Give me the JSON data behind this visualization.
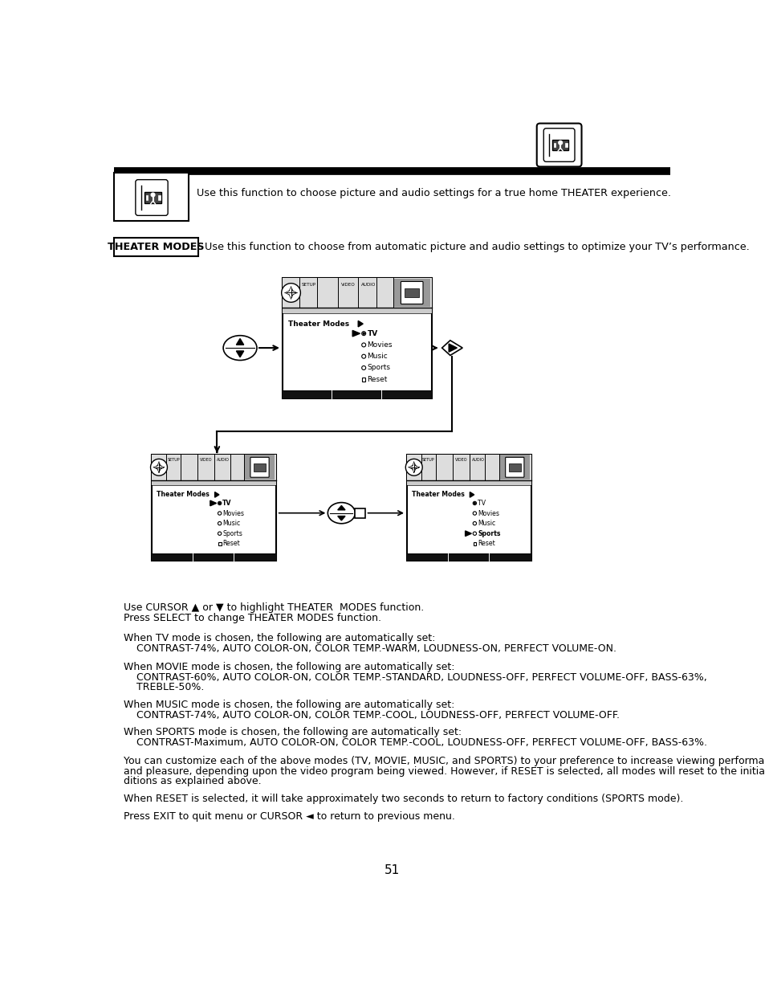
{
  "page_number": "51",
  "intro_text": "Use this function to choose picture and audio settings for a true home THEATER experience.",
  "theater_modes_label": "THEATER MODES",
  "theater_modes_desc": "Use this function to choose from automatic picture and audio settings to optimize your TV’s performance.",
  "menu_items": [
    "TV",
    "Movies",
    "Music",
    "Sports",
    "Reset"
  ],
  "cursor_text1": "Use CURSOR ▲ or ▼ to highlight THEATER  MODES function.",
  "cursor_text2": "Press SELECT to change THEATER MODES function.",
  "tv_mode_header": "When TV mode is chosen, the following are automatically set:",
  "tv_mode_detail": "    CONTRAST-74%, AUTO COLOR-ON, COLOR TEMP.-WARM, LOUDNESS-ON, PERFECT VOLUME-ON.",
  "movie_mode_header": "When MOVIE mode is chosen, the following are automatically set:",
  "movie_mode_line1": "    CONTRAST-60%, AUTO COLOR-ON, COLOR TEMP.-STANDARD, LOUDNESS-OFF, PERFECT VOLUME-OFF, BASS-63%,",
  "movie_mode_line2": "    TREBLE-50%.",
  "music_mode_header": "When MUSIC mode is chosen, the following are automatically set:",
  "music_mode_detail": "    CONTRAST-74%, AUTO COLOR-ON, COLOR TEMP.-COOL, LOUDNESS-OFF, PERFECT VOLUME-OFF.",
  "sports_mode_header": "When SPORTS mode is chosen, the following are automatically set:",
  "sports_mode_detail": "    CONTRAST-Maximum, AUTO COLOR-ON, COLOR TEMP.-COOL, LOUDNESS-OFF, PERFECT VOLUME-OFF, BASS-63%.",
  "customize_line1": "You can customize each of the above modes (TV, MOVIE, MUSIC, and SPORTS) to your preference to increase viewing performance",
  "customize_line2": "and pleasure, depending upon the video program being viewed. However, if RESET is selected, all modes will reset to the initial con-",
  "customize_line3": "ditions as explained above.",
  "reset_text": "When RESET is selected, it will take approximately two seconds to return to factory conditions (SPORTS mode).",
  "exit_text": "Press EXIT to quit menu or CURSOR ◄ to return to previous menu.",
  "bg_color": "#ffffff",
  "text_color": "#000000"
}
